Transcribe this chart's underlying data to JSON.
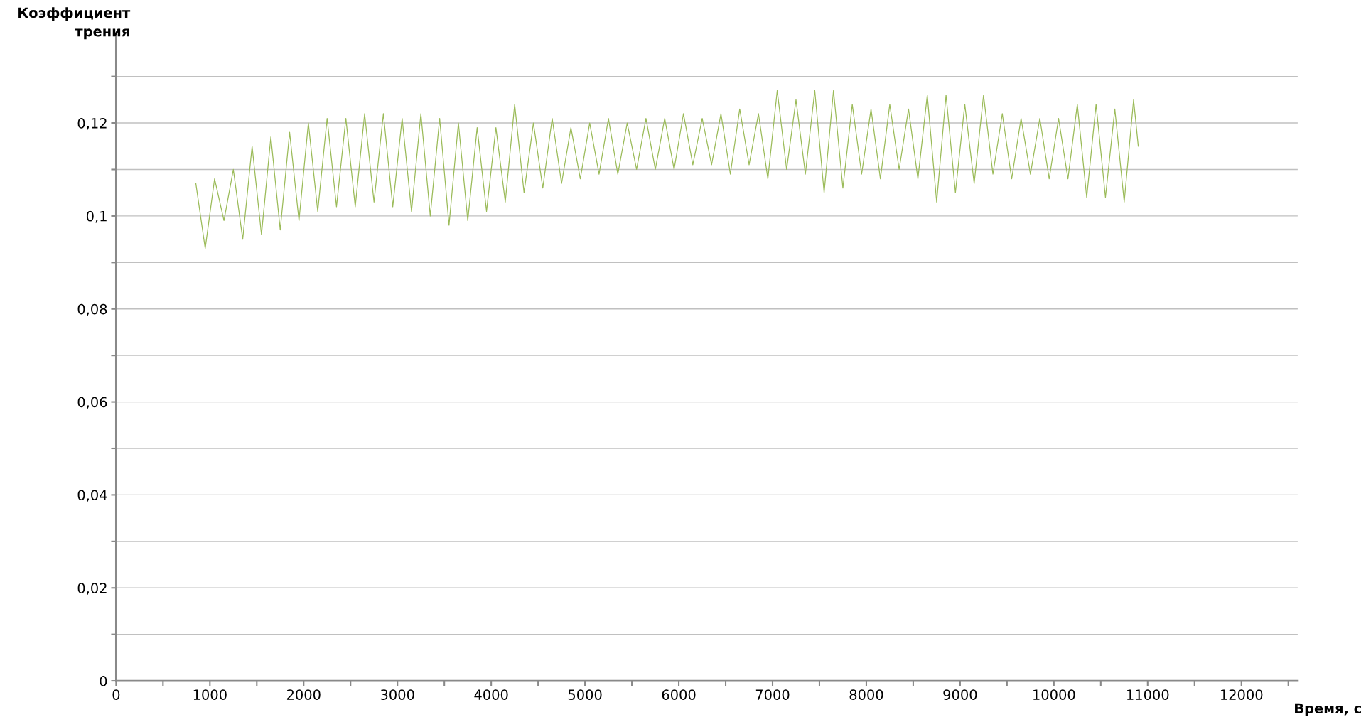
{
  "chart_data": {
    "type": "line",
    "xlabel": "Время, с",
    "ylabel": "Коэффициент\nтрения",
    "xlim": [
      0,
      12600
    ],
    "ylim": [
      0,
      0.139
    ],
    "xticks": [
      0,
      {
        "value": 500,
        "label": null
      },
      1000,
      {
        "value": 1500,
        "label": null
      },
      2000,
      {
        "value": 2500,
        "label": null
      },
      3000,
      {
        "value": 3500,
        "label": null
      },
      4000,
      {
        "value": 4500,
        "label": null
      },
      5000,
      {
        "value": 5500,
        "label": null
      },
      6000,
      {
        "value": 6500,
        "label": null
      },
      7000,
      {
        "value": 7500,
        "label": null
      },
      8000,
      {
        "value": 8500,
        "label": null
      },
      9000,
      {
        "value": 9500,
        "label": null
      },
      10000,
      {
        "value": 10500,
        "label": null
      },
      11000,
      {
        "value": 11500,
        "label": null
      },
      12000,
      {
        "value": 12500,
        "label": null
      }
    ],
    "yticks": [
      0,
      {
        "value": 0.01,
        "label": null
      },
      {
        "value": 0.02,
        "label": "0,02"
      },
      {
        "value": 0.03,
        "label": null
      },
      {
        "value": 0.04,
        "label": "0,04"
      },
      {
        "value": 0.05,
        "label": null
      },
      {
        "value": 0.06,
        "label": "0,06"
      },
      {
        "value": 0.07,
        "label": null
      },
      {
        "value": 0.08,
        "label": "0,08"
      },
      {
        "value": 0.09,
        "label": null
      },
      {
        "value": 0.1,
        "label": "0,1"
      },
      {
        "value": 0.11,
        "label": null
      },
      {
        "value": 0.12,
        "label": "0,12"
      },
      {
        "value": 0.13,
        "label": null
      }
    ],
    "grid": "y",
    "marker": "none",
    "line_style": "solid",
    "x": [
      850,
      950,
      1050,
      1150,
      1250,
      1350,
      1450,
      1550,
      1650,
      1750,
      1850,
      1950,
      2050,
      2150,
      2250,
      2350,
      2450,
      2550,
      2650,
      2750,
      2850,
      2950,
      3050,
      3150,
      3250,
      3350,
      3450,
      3550,
      3650,
      3750,
      3850,
      3950,
      4050,
      4150,
      4250,
      4350,
      4450,
      4550,
      4650,
      4750,
      4850,
      4950,
      5050,
      5150,
      5250,
      5350,
      5450,
      5550,
      5650,
      5750,
      5850,
      5950,
      6050,
      6150,
      6250,
      6350,
      6450,
      6550,
      6650,
      6750,
      6850,
      6950,
      7050,
      7150,
      7250,
      7350,
      7450,
      7550,
      7650,
      7750,
      7850,
      7950,
      8050,
      8150,
      8250,
      8350,
      8450,
      8550,
      8650,
      8750,
      8850,
      8950,
      9050,
      9150,
      9250,
      9350,
      9450,
      9550,
      9650,
      9750,
      9850,
      9950,
      10050,
      10150,
      10250,
      10350,
      10450,
      10550,
      10650,
      10750,
      10850,
      10900
    ],
    "series": [
      {
        "color": "#9bbb59",
        "values": [
          0.107,
          0.093,
          0.108,
          0.099,
          0.11,
          0.095,
          0.115,
          0.096,
          0.117,
          0.097,
          0.118,
          0.099,
          0.12,
          0.101,
          0.121,
          0.102,
          0.121,
          0.102,
          0.122,
          0.103,
          0.122,
          0.102,
          0.121,
          0.101,
          0.122,
          0.1,
          0.121,
          0.098,
          0.12,
          0.099,
          0.119,
          0.101,
          0.119,
          0.103,
          0.124,
          0.105,
          0.12,
          0.106,
          0.121,
          0.107,
          0.119,
          0.108,
          0.12,
          0.109,
          0.121,
          0.109,
          0.12,
          0.11,
          0.121,
          0.11,
          0.121,
          0.11,
          0.122,
          0.111,
          0.121,
          0.111,
          0.122,
          0.109,
          0.123,
          0.111,
          0.122,
          0.108,
          0.127,
          0.11,
          0.125,
          0.109,
          0.127,
          0.105,
          0.127,
          0.106,
          0.124,
          0.109,
          0.123,
          0.108,
          0.124,
          0.11,
          0.123,
          0.108,
          0.126,
          0.103,
          0.126,
          0.105,
          0.124,
          0.107,
          0.126,
          0.109,
          0.122,
          0.108,
          0.121,
          0.109,
          0.121,
          0.108,
          0.121,
          0.108,
          0.124,
          0.104,
          0.124,
          0.104,
          0.123,
          0.103,
          0.125,
          0.115
        ]
      }
    ]
  }
}
